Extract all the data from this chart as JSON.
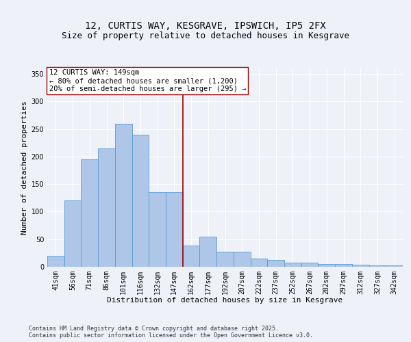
{
  "title": "12, CURTIS WAY, KESGRAVE, IPSWICH, IP5 2FX",
  "subtitle": "Size of property relative to detached houses in Kesgrave",
  "xlabel": "Distribution of detached houses by size in Kesgrave",
  "ylabel": "Number of detached properties",
  "categories": [
    "41sqm",
    "56sqm",
    "71sqm",
    "86sqm",
    "101sqm",
    "116sqm",
    "132sqm",
    "147sqm",
    "162sqm",
    "177sqm",
    "192sqm",
    "207sqm",
    "222sqm",
    "237sqm",
    "252sqm",
    "267sqm",
    "282sqm",
    "297sqm",
    "312sqm",
    "327sqm",
    "342sqm"
  ],
  "values": [
    20,
    120,
    195,
    215,
    260,
    240,
    135,
    135,
    38,
    55,
    27,
    27,
    15,
    12,
    8,
    8,
    5,
    5,
    4,
    3,
    3
  ],
  "bar_color": "#aec6e8",
  "bar_edge_color": "#5b9bd5",
  "vline_pos": 7.5,
  "vline_color": "#990000",
  "annotation_text": "12 CURTIS WAY: 149sqm\n← 80% of detached houses are smaller (1,200)\n20% of semi-detached houses are larger (295) →",
  "annotation_box_color": "#ffffff",
  "annotation_box_edge_color": "#990000",
  "ylim": [
    0,
    360
  ],
  "yticks": [
    0,
    50,
    100,
    150,
    200,
    250,
    300,
    350
  ],
  "background_color": "#eef2f8",
  "axes_background_color": "#eef2f8",
  "footer_text": "Contains HM Land Registry data © Crown copyright and database right 2025.\nContains public sector information licensed under the Open Government Licence v3.0.",
  "title_fontsize": 10,
  "subtitle_fontsize": 9,
  "xlabel_fontsize": 8,
  "ylabel_fontsize": 8,
  "tick_fontsize": 7,
  "annotation_fontsize": 7.5,
  "footer_fontsize": 6
}
